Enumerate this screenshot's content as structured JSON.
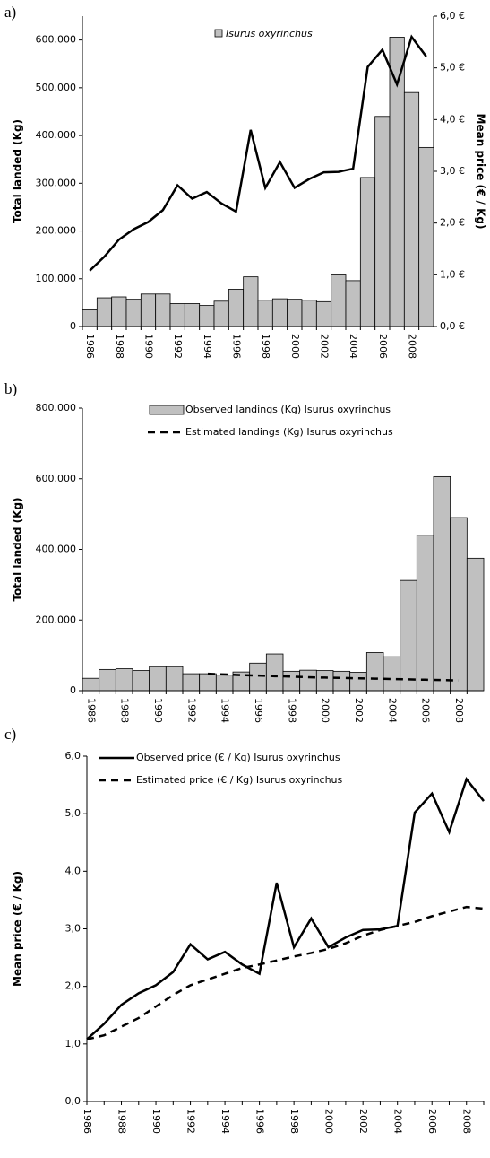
{
  "chart_data": [
    {
      "type": "bar",
      "label": "a)",
      "categories": [
        "1986",
        null,
        "1988",
        null,
        "1990",
        null,
        "1992",
        null,
        "1994",
        null,
        "1996",
        null,
        "1998",
        null,
        "2000",
        null,
        "2002",
        null,
        "2004",
        null,
        "2006",
        null,
        "2008",
        null
      ],
      "series": [
        {
          "name": "Isurus oxyrinchus",
          "type": "bar",
          "color": "#c0c0c0",
          "values": [
            35000,
            60000,
            62000,
            57000,
            68000,
            68000,
            48000,
            48000,
            44000,
            53000,
            78000,
            104000,
            55000,
            58000,
            57000,
            55000,
            52000,
            108000,
            96000,
            312000,
            440000,
            606000,
            490000,
            375000
          ]
        },
        {
          "type": "line",
          "axis": "y2",
          "color": "#000000",
          "values": [
            1.08,
            1.35,
            1.68,
            1.88,
            2.02,
            2.25,
            2.73,
            2.47,
            2.6,
            2.38,
            2.22,
            3.8,
            2.68,
            3.18,
            2.68,
            2.85,
            2.98,
            2.99,
            3.05,
            5.02,
            5.35,
            4.68,
            5.6,
            5.22
          ]
        }
      ],
      "y_label": "Total landed (Kg)",
      "y2_label": "Mean price (€ / Kg)",
      "ylim": [
        0,
        650000
      ],
      "yticks": [
        0,
        {
          "value": 100000,
          "label": "100.000"
        },
        {
          "value": 200000,
          "label": "200.000"
        },
        {
          "value": 300000,
          "label": "300.000"
        },
        {
          "value": 400000,
          "label": "400.000"
        },
        {
          "value": 500000,
          "label": "500.000"
        },
        {
          "value": 600000,
          "label": "600.000"
        }
      ],
      "y2lim": [
        0,
        6
      ],
      "y2ticks": [
        {
          "value": 0,
          "label": "0,0 €"
        },
        {
          "value": 1,
          "label": "1,0 €"
        },
        {
          "value": 2,
          "label": "2,0 €"
        },
        {
          "value": 3,
          "label": "3,0 €"
        },
        {
          "value": 4,
          "label": "4,0 €"
        },
        {
          "value": 5,
          "label": "5,0 €"
        },
        {
          "value": 6,
          "label": "6,0 €"
        }
      ],
      "legend": "top-center"
    },
    {
      "type": "bar",
      "label": "b)",
      "categories": [
        "1986",
        null,
        "1988",
        null,
        "1990",
        null,
        "1992",
        null,
        "1994",
        null,
        "1996",
        null,
        "1998",
        null,
        "2000",
        null,
        "2002",
        null,
        "2004",
        null,
        "2006",
        null,
        "2008",
        null
      ],
      "series": [
        {
          "name": "Observed landings (Kg) Isurus oxyrinchus",
          "type": "bar",
          "color": "#c0c0c0",
          "values": [
            35000,
            60000,
            62000,
            57000,
            68000,
            68000,
            48000,
            48000,
            44000,
            53000,
            78000,
            104000,
            55000,
            58000,
            57000,
            55000,
            52000,
            108000,
            96000,
            312000,
            440000,
            606000,
            490000,
            375000
          ]
        },
        {
          "name": "Estimated landings (Kg) Isurus oxyrinchus",
          "type": "line",
          "dashed": true,
          "color": "#000000",
          "values": [
            null,
            null,
            null,
            null,
            null,
            null,
            null,
            48000,
            46000,
            44000,
            43000,
            41000,
            40000,
            38000,
            37000,
            36000,
            35000,
            34000,
            33000,
            32000,
            31000,
            30000,
            29000,
            null
          ]
        }
      ],
      "y_label": "Total landed (Kg)",
      "ylim": [
        0,
        800000
      ],
      "yticks": [
        0,
        {
          "value": 200000,
          "label": "200.000"
        },
        {
          "value": 400000,
          "label": "400.000"
        },
        {
          "value": 600000,
          "label": "600.000"
        },
        {
          "value": 800000,
          "label": "800.000"
        }
      ],
      "legend": "top-right"
    },
    {
      "type": "line",
      "label": "c)",
      "categories": [
        "1986",
        null,
        "1988",
        null,
        "1990",
        null,
        "1992",
        null,
        "1994",
        null,
        "1996",
        null,
        "1998",
        null,
        "2000",
        null,
        "2002",
        null,
        "2004",
        null,
        "2006",
        null,
        "2008",
        null
      ],
      "series": [
        {
          "name": "Observed price (€ / Kg) Isurus oxyrinchus",
          "type": "line",
          "color": "#000000",
          "values": [
            1.08,
            1.35,
            1.68,
            1.88,
            2.02,
            2.25,
            2.73,
            2.47,
            2.6,
            2.38,
            2.22,
            3.8,
            2.68,
            3.18,
            2.68,
            2.85,
            2.98,
            2.99,
            3.05,
            5.02,
            5.35,
            4.68,
            5.6,
            5.22
          ]
        },
        {
          "name": "Estimated price (€ / Kg) Isurus oxyrinchus",
          "type": "line",
          "dashed": true,
          "color": "#000000",
          "values": [
            1.08,
            1.15,
            1.3,
            1.45,
            1.65,
            1.85,
            2.02,
            2.12,
            2.22,
            2.32,
            2.38,
            2.45,
            2.52,
            2.58,
            2.65,
            2.75,
            2.88,
            2.98,
            3.05,
            3.12,
            3.22,
            3.3,
            3.38,
            3.35
          ]
        }
      ],
      "y_label": "Mean price (€ / Kg)",
      "ylim": [
        0,
        6
      ],
      "yticks": [
        {
          "value": 0,
          "label": "0,0"
        },
        {
          "value": 1,
          "label": "1,0"
        },
        {
          "value": 2,
          "label": "2,0"
        },
        {
          "value": 3,
          "label": "3,0"
        },
        {
          "value": 4,
          "label": "4,0"
        },
        {
          "value": 5,
          "label": "5,0"
        },
        {
          "value": 6,
          "label": "6,0"
        }
      ],
      "legend": "top-right"
    }
  ]
}
